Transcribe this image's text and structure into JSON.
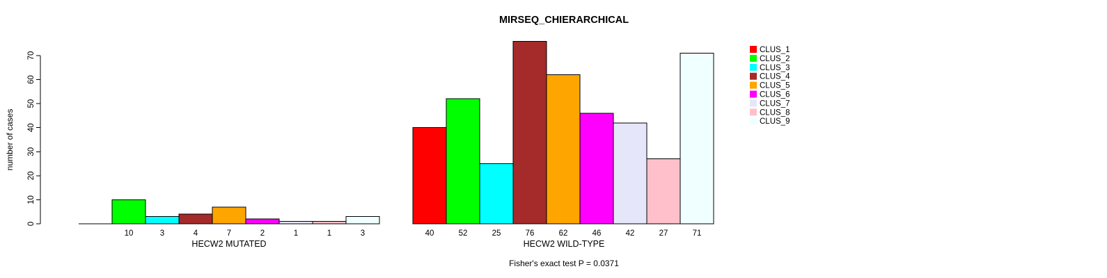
{
  "chart_data": {
    "type": "bar",
    "title": "MIRSEQ_CHIERARCHICAL",
    "ylabel": "number of cases",
    "ylim": [
      0,
      70
    ],
    "yticks": [
      0,
      10,
      20,
      30,
      40,
      50,
      60,
      70
    ],
    "grid": false,
    "legend_position": "right",
    "clusters": [
      {
        "name": "CLUS_1",
        "color": "#FF0000"
      },
      {
        "name": "CLUS_2",
        "color": "#00FF00"
      },
      {
        "name": "CLUS_3",
        "color": "#00FFFF"
      },
      {
        "name": "CLUS_4",
        "color": "#A52A2A"
      },
      {
        "name": "CLUS_5",
        "color": "#FFA500"
      },
      {
        "name": "CLUS_6",
        "color": "#FF00FF"
      },
      {
        "name": "CLUS_7",
        "color": "#E6E6FA"
      },
      {
        "name": "CLUS_8",
        "color": "#FFC0CB"
      },
      {
        "name": "CLUS_9",
        "color": "#F0FFFF"
      }
    ],
    "groups": [
      {
        "label": "HECW2 MUTATED",
        "values": [
          0,
          10,
          3,
          4,
          7,
          2,
          1,
          1,
          3
        ],
        "bar_labels": [
          "",
          "10",
          "3",
          "4",
          "7",
          "2",
          "1",
          "1",
          "3"
        ]
      },
      {
        "label": "HECW2 WILD-TYPE",
        "values": [
          40,
          52,
          25,
          76,
          62,
          46,
          42,
          27,
          71
        ],
        "bar_labels": [
          "40",
          "52",
          "25",
          "76",
          "62",
          "46",
          "42",
          "27",
          "71"
        ]
      }
    ],
    "footnote": "Fisher's exact test P = 0.0371"
  }
}
